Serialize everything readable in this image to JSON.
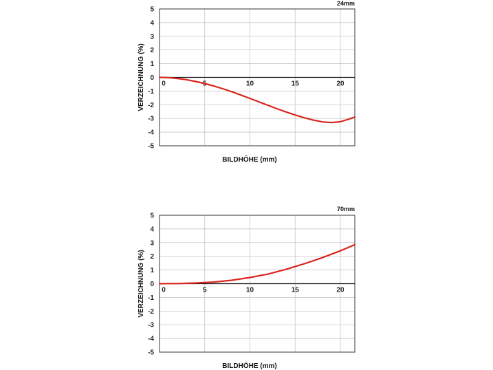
{
  "chart_data": [
    {
      "type": "line",
      "title": "24mm",
      "xlabel": "BILDHÖHE (mm)",
      "ylabel": "VERZEICHNUNG (%)",
      "xlim": [
        0,
        21.6
      ],
      "ylim": [
        -5,
        5
      ],
      "xticks": [
        "0",
        "5",
        "10",
        "15",
        "20"
      ],
      "yticks": [
        "5",
        "4",
        "3",
        "2",
        "1",
        "0",
        "-1",
        "-2",
        "-3",
        "-4",
        "-5"
      ],
      "grid": true,
      "line_color": "#d9251d",
      "x": [
        0,
        1,
        2,
        3,
        4,
        5,
        6,
        7,
        8,
        9,
        10,
        11,
        12,
        13,
        14,
        15,
        16,
        17,
        18,
        19,
        20,
        21,
        21.6
      ],
      "y": [
        0,
        -0.02,
        -0.08,
        -0.17,
        -0.3,
        -0.45,
        -0.63,
        -0.83,
        -1.05,
        -1.29,
        -1.54,
        -1.79,
        -2.04,
        -2.29,
        -2.53,
        -2.75,
        -2.95,
        -3.12,
        -3.25,
        -3.3,
        -3.24,
        -3.04,
        -2.9
      ]
    },
    {
      "type": "line",
      "title": "70mm",
      "xlabel": "BILDHÖHE (mm)",
      "ylabel": "VERZEICHNUNG (%)",
      "xlim": [
        0,
        21.6
      ],
      "ylim": [
        -5,
        5
      ],
      "xticks": [
        "0",
        "5",
        "10",
        "15",
        "20"
      ],
      "yticks": [
        "5",
        "4",
        "3",
        "2",
        "1",
        "0",
        "-1",
        "-2",
        "-3",
        "-4",
        "-5"
      ],
      "grid": true,
      "line_color": "#d9251d",
      "x": [
        0,
        2,
        4,
        6,
        8,
        10,
        12,
        14,
        16,
        18,
        20,
        21.6
      ],
      "y": [
        0,
        0.01,
        0.05,
        0.12,
        0.25,
        0.45,
        0.7,
        1.05,
        1.45,
        1.9,
        2.4,
        2.85
      ]
    }
  ]
}
